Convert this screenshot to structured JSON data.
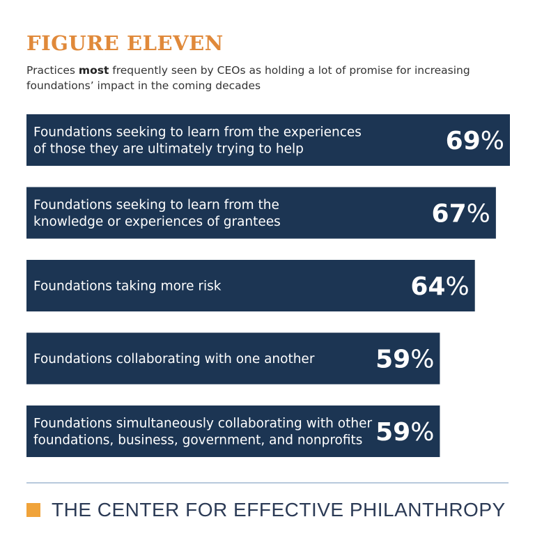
{
  "header": {
    "figure_label": "FIGURE ELEVEN",
    "subtitle_pre": "Practices ",
    "subtitle_bold": "most",
    "subtitle_post": " frequently seen by CEOs as holding a lot of promise for increasing foundations’ impact in the coming decades"
  },
  "colors": {
    "title": "#e0893a",
    "bar": "#1c3553",
    "bar_text": "#ffffff",
    "footer_rule": "#b7c9dc",
    "footer_square": "#f0a33a"
  },
  "chart_data": {
    "type": "bar",
    "orientation": "horizontal",
    "unit": "%",
    "xlim": [
      0,
      100
    ],
    "grid": false,
    "categories": [
      [
        "Foundations seeking to learn from the experiences",
        "of those they are ultimately trying to help"
      ],
      [
        "Foundations seeking to learn from the",
        "knowledge or experiences of grantees"
      ],
      [
        "Foundations taking more risk"
      ],
      [
        "Foundations collaborating with one another"
      ],
      [
        "Foundations simultaneously collaborating with other",
        "foundations, business, government, and nonprofits"
      ]
    ],
    "values": [
      69,
      67,
      64,
      59,
      59
    ],
    "value_labels": [
      "69",
      "67",
      "64",
      "59",
      "59"
    ]
  },
  "footer": {
    "organization": "THE CENTER FOR EFFECTIVE  PHILANTHROPY"
  }
}
